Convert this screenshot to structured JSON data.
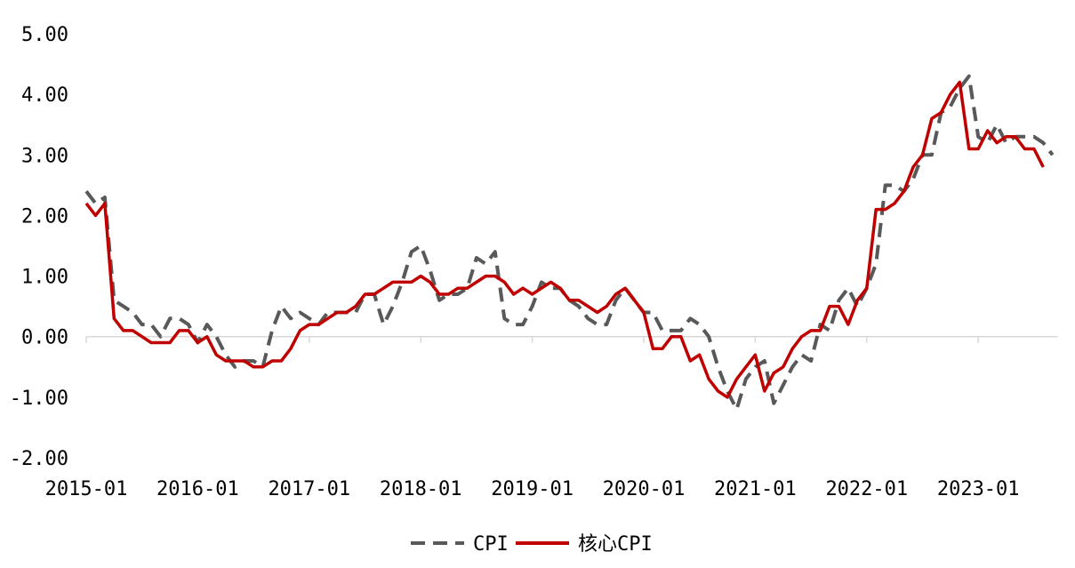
{
  "chart_data": {
    "type": "line",
    "title": "",
    "xlabel": "",
    "ylabel": "",
    "ylim": [
      -2,
      5
    ],
    "y_ticks": [
      "5.00",
      "4.00",
      "3.00",
      "2.00",
      "1.00",
      "0.00",
      "-1.00",
      "-2.00"
    ],
    "x_ticks": [
      "2015-01",
      "2016-01",
      "2017-01",
      "2018-01",
      "2019-01",
      "2020-01",
      "2021-01",
      "2022-01",
      "2023-01"
    ],
    "x_start": "2015-01",
    "x_end": "2023-09",
    "grid": false,
    "legend_position": "bottom-center",
    "series": [
      {
        "name": "CPI",
        "color": "#595959",
        "dash": "dashed",
        "values": [
          2.4,
          2.2,
          2.3,
          0.6,
          0.5,
          0.4,
          0.2,
          0.2,
          0.0,
          0.3,
          0.3,
          0.2,
          -0.1,
          0.2,
          0.0,
          -0.3,
          -0.5,
          -0.4,
          -0.4,
          -0.5,
          0.1,
          0.5,
          0.3,
          0.4,
          0.3,
          0.2,
          0.4,
          0.4,
          0.4,
          0.4,
          0.7,
          0.7,
          0.2,
          0.5,
          0.9,
          1.4,
          1.5,
          1.1,
          0.6,
          0.7,
          0.7,
          0.8,
          1.3,
          1.2,
          1.4,
          0.3,
          0.2,
          0.2,
          0.5,
          0.9,
          0.8,
          0.8,
          0.6,
          0.5,
          0.3,
          0.2,
          0.2,
          0.6,
          0.8,
          0.6,
          0.4,
          0.4,
          0.1,
          0.1,
          0.1,
          0.3,
          0.2,
          0.0,
          -0.5,
          -0.9,
          -1.2,
          -0.7,
          -0.5,
          -0.4,
          -1.1,
          -0.8,
          -0.5,
          -0.3,
          -0.4,
          0.2,
          0.1,
          0.6,
          0.8,
          0.5,
          0.8,
          1.2,
          2.5,
          2.5,
          2.4,
          2.6,
          3.0,
          3.0,
          3.7,
          3.8,
          4.1,
          4.3,
          3.3,
          3.2,
          3.5,
          3.2,
          3.3,
          3.3,
          3.3,
          3.2,
          3.0
        ]
      },
      {
        "name": "核心CPI",
        "color": "#C00000",
        "dash": "solid",
        "values": [
          2.2,
          2.0,
          2.2,
          0.3,
          0.1,
          0.1,
          0.0,
          -0.1,
          -0.1,
          -0.1,
          0.1,
          0.1,
          -0.1,
          0.0,
          -0.3,
          -0.4,
          -0.4,
          -0.4,
          -0.5,
          -0.5,
          -0.4,
          -0.4,
          -0.2,
          0.1,
          0.2,
          0.2,
          0.3,
          0.4,
          0.4,
          0.5,
          0.7,
          0.7,
          0.8,
          0.9,
          0.9,
          0.9,
          1.0,
          0.9,
          0.7,
          0.7,
          0.8,
          0.8,
          0.9,
          1.0,
          1.0,
          0.9,
          0.7,
          0.8,
          0.7,
          0.8,
          0.9,
          0.8,
          0.6,
          0.6,
          0.5,
          0.4,
          0.5,
          0.7,
          0.8,
          0.6,
          0.4,
          -0.2,
          -0.2,
          0.0,
          0.0,
          -0.4,
          -0.3,
          -0.7,
          -0.9,
          -1.0,
          -0.7,
          -0.5,
          -0.3,
          -0.9,
          -0.6,
          -0.5,
          -0.2,
          0.0,
          0.1,
          0.1,
          0.5,
          0.5,
          0.2,
          0.6,
          0.8,
          2.1,
          2.1,
          2.2,
          2.4,
          2.8,
          3.0,
          3.6,
          3.7,
          4.0,
          4.2,
          3.1,
          3.1,
          3.4,
          3.2,
          3.3,
          3.3,
          3.1,
          3.1,
          2.8
        ]
      }
    ]
  }
}
